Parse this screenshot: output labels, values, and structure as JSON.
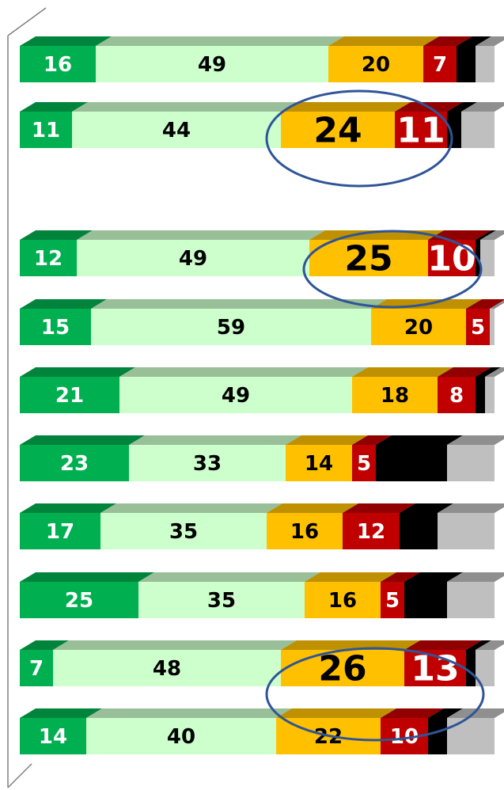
{
  "chart_data": {
    "type": "bar",
    "orientation": "horizontal",
    "stacked": true,
    "categories": [
      null,
      null,
      null,
      null,
      null,
      null,
      null,
      null,
      null,
      null
    ],
    "xlim": [
      0,
      100
    ],
    "series": [
      {
        "color": "#00b050",
        "data_labels": true,
        "values": [
          16,
          11,
          12,
          15,
          21,
          23,
          17,
          25,
          7,
          14
        ]
      },
      {
        "color": "#ccffcc",
        "data_labels": true,
        "values": [
          49,
          44,
          49,
          59,
          49,
          33,
          35,
          35,
          48,
          40
        ]
      },
      {
        "color": "#ffc000",
        "data_labels": true,
        "values": [
          20,
          24,
          25,
          20,
          18,
          14,
          16,
          16,
          26,
          22
        ]
      },
      {
        "color": "#c00000",
        "data_labels": true,
        "values": [
          7,
          11,
          10,
          5,
          8,
          5,
          12,
          5,
          13,
          10
        ]
      },
      {
        "color": "#000000",
        "data_labels": false,
        "values": [
          4,
          3,
          1,
          0,
          2,
          15,
          8,
          9,
          2,
          4
        ]
      },
      {
        "color": "#bfbfbf",
        "data_labels": false,
        "values": [
          4,
          7,
          3,
          1,
          2,
          10,
          12,
          10,
          4,
          10
        ]
      }
    ]
  }
}
